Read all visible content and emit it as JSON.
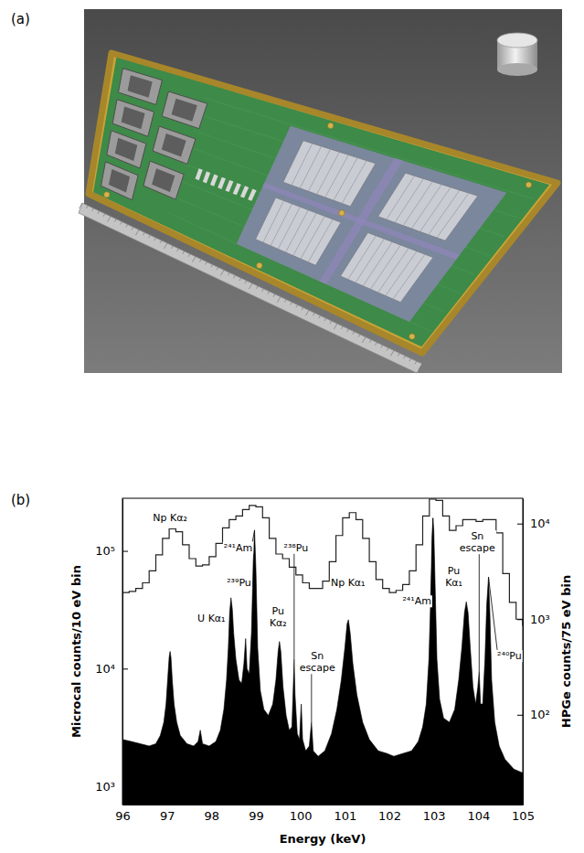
{
  "panel_labels": [
    "(a)",
    "(b)"
  ],
  "chart_data": {
    "type": "line",
    "x_label": "Energy (keV)",
    "y_label": "Microcal counts/10 eV bin",
    "y2_label": "HPGe counts/75 eV bin",
    "log": "y",
    "grid": false,
    "xlim": [
      96,
      105
    ],
    "xticks": [
      96,
      97,
      98,
      99,
      100,
      101,
      102,
      103,
      104,
      105
    ],
    "ylim": [
      700,
      280000
    ],
    "yticks": [
      {
        "value": 1000,
        "label": "10³"
      },
      {
        "value": 10000,
        "label": "10⁴"
      },
      {
        "value": 100000,
        "label": "10⁵"
      }
    ],
    "y2lim": [
      11.5,
      18400
    ],
    "y2ticks": [
      {
        "value": 100,
        "label": "10²"
      },
      {
        "value": 1000,
        "label": "10³"
      },
      {
        "value": 10000,
        "label": "10⁴"
      }
    ],
    "series": [
      {
        "type": "area",
        "color": "#000000",
        "x": [
          96.0,
          96.2,
          96.4,
          96.6,
          96.75,
          96.85,
          96.93,
          96.98,
          97.02,
          97.05,
          97.07,
          97.09,
          97.12,
          97.16,
          97.22,
          97.3,
          97.45,
          97.6,
          97.7,
          97.75,
          97.8,
          97.95,
          98.1,
          98.2,
          98.28,
          98.34,
          98.38,
          98.41,
          98.44,
          98.47,
          98.5,
          98.55,
          98.62,
          98.68,
          98.73,
          98.77,
          98.8,
          98.85,
          98.9,
          98.94,
          98.97,
          99.0,
          99.04,
          99.1,
          99.18,
          99.28,
          99.38,
          99.45,
          99.5,
          99.53,
          99.56,
          99.61,
          99.68,
          99.75,
          99.81,
          99.84,
          99.86,
          99.88,
          99.93,
          99.98,
          100.02,
          100.05,
          100.12,
          100.2,
          100.25,
          100.29,
          100.4,
          100.55,
          100.7,
          100.82,
          100.92,
          101.0,
          101.05,
          101.08,
          101.12,
          101.18,
          101.27,
          101.4,
          101.55,
          101.75,
          101.95,
          102.1,
          102.3,
          102.5,
          102.65,
          102.75,
          102.83,
          102.89,
          102.93,
          102.96,
          102.98,
          103.0,
          103.03,
          103.07,
          103.13,
          103.22,
          103.35,
          103.47,
          103.56,
          103.63,
          103.69,
          103.73,
          103.77,
          103.82,
          103.88,
          103.94,
          103.99,
          104.02,
          104.05,
          104.1,
          104.15,
          104.19,
          104.23,
          104.26,
          104.3,
          104.37,
          104.47,
          104.6,
          104.8,
          105.0
        ],
        "values": [
          2500,
          2400,
          2300,
          2200,
          2300,
          2700,
          3500,
          5000,
          8500,
          12500,
          14000,
          12500,
          8000,
          5000,
          3500,
          2700,
          2300,
          2200,
          2400,
          3000,
          2300,
          2200,
          2400,
          3000,
          4500,
          8000,
          15000,
          30000,
          40000,
          32000,
          20000,
          12000,
          8000,
          7500,
          11000,
          18000,
          10000,
          9000,
          20000,
          80000,
          150000,
          70000,
          15000,
          6500,
          4500,
          4000,
          5000,
          8000,
          14000,
          17000,
          14000,
          7000,
          4000,
          3000,
          3200,
          7000,
          12000,
          6000,
          2800,
          2500,
          5000,
          2500,
          2000,
          2200,
          3500,
          2000,
          1800,
          2000,
          2800,
          4500,
          8000,
          15000,
          24000,
          26000,
          20000,
          11000,
          6000,
          3500,
          2500,
          2000,
          1900,
          1800,
          1900,
          2000,
          2400,
          3200,
          5000,
          12000,
          40000,
          130000,
          190000,
          150000,
          50000,
          12000,
          5500,
          3800,
          3500,
          4500,
          8000,
          15000,
          30000,
          37000,
          30000,
          15000,
          7000,
          5000,
          7000,
          9500,
          5000,
          5000,
          12000,
          35000,
          60000,
          30000,
          8000,
          3500,
          2200,
          1700,
          1400,
          1300
        ]
      },
      {
        "type": "line",
        "line_style": "step",
        "color": "#222222",
        "axis": "y2",
        "x": [
          96.0,
          96.15,
          96.3,
          96.45,
          96.6,
          96.75,
          96.9,
          97.05,
          97.2,
          97.35,
          97.5,
          97.65,
          97.8,
          97.95,
          98.1,
          98.25,
          98.4,
          98.55,
          98.7,
          98.85,
          99.0,
          99.15,
          99.3,
          99.45,
          99.6,
          99.75,
          99.9,
          100.05,
          100.2,
          100.35,
          100.5,
          100.65,
          100.8,
          100.95,
          101.1,
          101.25,
          101.4,
          101.55,
          101.7,
          101.85,
          102.0,
          102.15,
          102.3,
          102.45,
          102.6,
          102.75,
          102.9,
          103.05,
          103.2,
          103.35,
          103.5,
          103.65,
          103.8,
          103.95,
          104.1,
          104.25,
          104.4,
          104.55,
          104.7,
          104.85,
          105.0
        ],
        "values": [
          1900,
          1950,
          2100,
          2400,
          3200,
          4700,
          7000,
          8800,
          8200,
          6000,
          4300,
          3600,
          3700,
          4500,
          6200,
          9000,
          11000,
          12000,
          14000,
          15500,
          15000,
          11500,
          7000,
          4800,
          4300,
          3500,
          2900,
          2400,
          2100,
          2100,
          2500,
          4000,
          7500,
          11500,
          13000,
          11000,
          7000,
          4000,
          2600,
          2100,
          1900,
          2000,
          2300,
          3200,
          6000,
          12000,
          18000,
          17500,
          12000,
          8500,
          9500,
          11000,
          11000,
          10500,
          11000,
          11000,
          8000,
          3000,
          1500,
          1000,
          850
        ]
      }
    ],
    "annotations": [
      {
        "lines": [
          "Np Kα₂"
        ],
        "x": 97.07,
        "y": 180000
      },
      {
        "lines": [
          "U Kα₁"
        ],
        "x": 98.0,
        "y": 25000
      },
      {
        "lines": [
          "²³⁹Pu"
        ],
        "x": 98.62,
        "y": 50000
      },
      {
        "lines": [
          "²⁴¹Am"
        ],
        "x": 98.6,
        "y": 100000,
        "line_to": [
          98.97,
          150000
        ]
      },
      {
        "lines": [
          "Pu",
          "Kα₂"
        ],
        "x": 99.5,
        "y": 29000
      },
      {
        "lines": [
          "²³⁸Pu"
        ],
        "x": 99.9,
        "y": 100000,
        "line_to": [
          99.86,
          12000
        ]
      },
      {
        "lines": [
          "Sn",
          "escape"
        ],
        "x": 100.38,
        "y": 12000,
        "line_to": [
          100.25,
          3500
        ]
      },
      {
        "lines": [
          "Np Kα₁"
        ],
        "x": 101.07,
        "y": 50000
      },
      {
        "lines": [
          "²⁴¹Am"
        ],
        "x": 102.62,
        "y": 35000,
        "line_to": [
          102.98,
          190000
        ]
      },
      {
        "lines": [
          "Pu",
          "Kα₁"
        ],
        "x": 103.45,
        "y": 63000
      },
      {
        "lines": [
          "Sn",
          "escape"
        ],
        "x": 103.98,
        "y": 125000,
        "line_to": [
          104.02,
          9500
        ]
      },
      {
        "lines": [
          "²⁴⁰Pu"
        ],
        "x": 104.7,
        "y": 12000,
        "line_to": [
          104.23,
          60000
        ]
      }
    ]
  }
}
